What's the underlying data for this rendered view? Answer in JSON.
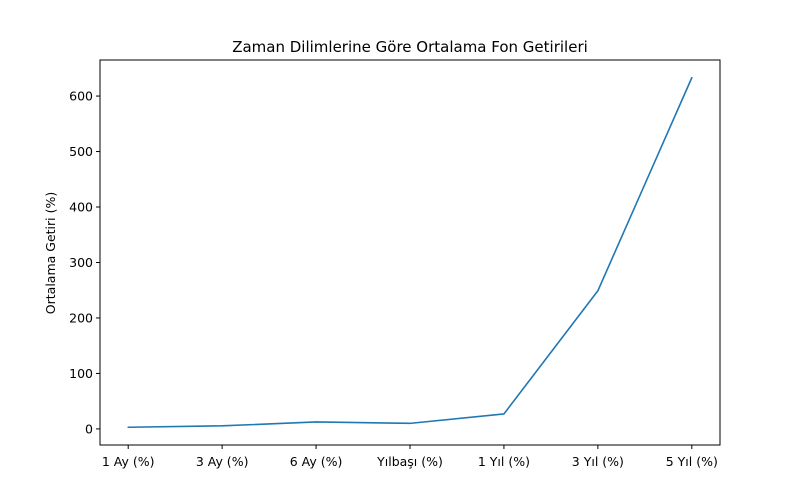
{
  "chart_data": {
    "type": "line",
    "title": "Zaman Dilimlerine Göre Ortalama Fon Getirileri",
    "xlabel": "",
    "ylabel": "Ortalama Getiri (%)",
    "categories": [
      "1 Ay (%)",
      "3 Ay (%)",
      "6 Ay (%)",
      "Yılbaşı (%)",
      "1 Yıl (%)",
      "3 Yıl (%)",
      "5 Yıl (%)"
    ],
    "series": [
      {
        "values": [
          3.0,
          5.5,
          12.5,
          10.0,
          27.0,
          249.0,
          633.0
        ],
        "color": "#1f77b4"
      }
    ],
    "ylim": [
      -29,
      665
    ],
    "yticks": [
      0,
      100,
      200,
      300,
      400,
      500,
      600
    ],
    "grid": false,
    "legend": "none"
  }
}
